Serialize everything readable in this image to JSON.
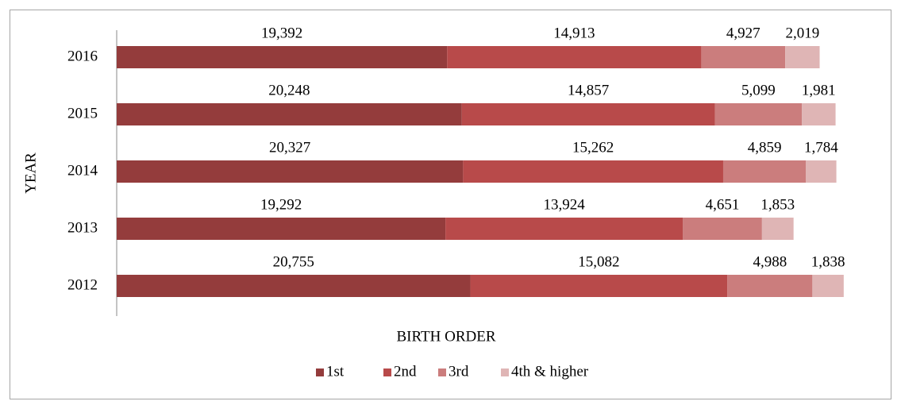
{
  "chart_data": {
    "type": "stacked-barh",
    "x_label": "BIRTH ORDER",
    "y_label": "YEAR",
    "categories": [
      "2016",
      "2015",
      "2014",
      "2013",
      "2012"
    ],
    "xlim": [
      0,
      45000
    ],
    "legend": "bottom",
    "series": [
      {
        "name": "1st",
        "color": "#943c3c",
        "values": [
          19392,
          20248,
          20327,
          19292,
          20755
        ],
        "value_labels": [
          "19,392",
          "20,248",
          "20,327",
          "19,292",
          "20,755"
        ]
      },
      {
        "name": "2nd",
        "color": "#b84a4a",
        "values": [
          14913,
          14857,
          15262,
          13924,
          15082
        ],
        "value_labels": [
          "14,913",
          "14,857",
          "15,262",
          "13,924",
          "15,082"
        ]
      },
      {
        "name": "3rd",
        "color": "#cb7d7d",
        "values": [
          4927,
          5099,
          4859,
          4651,
          4988
        ],
        "value_labels": [
          "4,927",
          "5,099",
          "4,859",
          "4,651",
          "4,988"
        ]
      },
      {
        "name": "4th & higher",
        "color": "#dfb5b5",
        "values": [
          2019,
          1981,
          1784,
          1853,
          1838
        ],
        "value_labels": [
          "2,019",
          "1,981",
          "1,784",
          "1,853",
          "1,838"
        ]
      }
    ]
  }
}
